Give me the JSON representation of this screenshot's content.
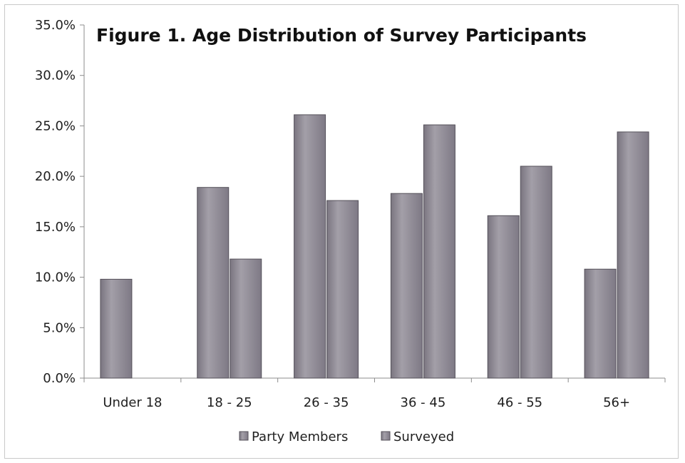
{
  "chart_data": {
    "type": "bar",
    "title": "Figure 1. Age Distribution of Survey Participants",
    "xlabel": "",
    "ylabel": "",
    "categories": [
      "Under 18",
      "18 - 25",
      "26 - 35",
      "36 - 45",
      "46 - 55",
      "56+"
    ],
    "series": [
      {
        "name": "Party Members",
        "values": [
          9.8,
          18.9,
          26.1,
          18.3,
          16.1,
          10.8
        ],
        "color": "#8a8590"
      },
      {
        "name": "Surveyed",
        "values": [
          null,
          11.8,
          17.6,
          25.1,
          21.0,
          24.4
        ],
        "color": "#8a8590"
      }
    ],
    "ylim": [
      0,
      35
    ],
    "yticks": [
      "0.0%",
      "5.0%",
      "10.0%",
      "15.0%",
      "20.0%",
      "25.0%",
      "30.0%",
      "35.0%"
    ],
    "grid": false,
    "legend_position": "bottom"
  }
}
